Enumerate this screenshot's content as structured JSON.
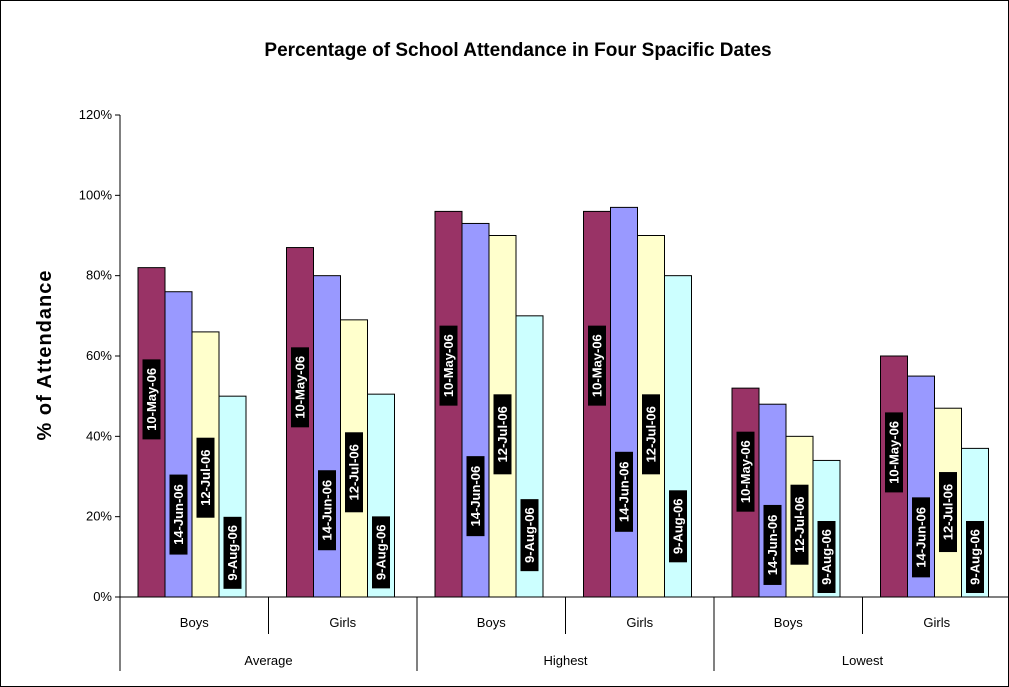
{
  "chart_data": {
    "type": "bar",
    "title": "Percentage of School Attendance in Four Spacific Dates",
    "ylabel": "% of Attendance",
    "xlabel": "",
    "ylim": [
      0,
      1.2
    ],
    "yticks": [
      0,
      0.2,
      0.4,
      0.6,
      0.8,
      1.0,
      1.2
    ],
    "ytick_labels": [
      "0%",
      "20%",
      "40%",
      "60%",
      "80%",
      "100%",
      "120%"
    ],
    "groups": [
      "Average",
      "Highest",
      "Lowest"
    ],
    "categories": [
      "Boys",
      "Girls",
      "Boys",
      "Girls",
      "Boys",
      "Girls"
    ],
    "series": [
      {
        "name": "10-May-06",
        "color": "#993366",
        "values": [
          0.82,
          0.87,
          0.96,
          0.96,
          0.52,
          0.6
        ]
      },
      {
        "name": "14-Jun-06",
        "color": "#9999ff",
        "values": [
          0.76,
          0.8,
          0.93,
          0.97,
          0.48,
          0.55
        ]
      },
      {
        "name": "12-Jul-06",
        "color": "#ffffcc",
        "values": [
          0.66,
          0.69,
          0.9,
          0.9,
          0.4,
          0.47
        ]
      },
      {
        "name": "9-Aug-06",
        "color": "#ccffff",
        "values": [
          0.5,
          0.505,
          0.7,
          0.8,
          0.34,
          0.37
        ]
      }
    ],
    "data_labels": "series-name",
    "grid": false,
    "legend": "none"
  }
}
